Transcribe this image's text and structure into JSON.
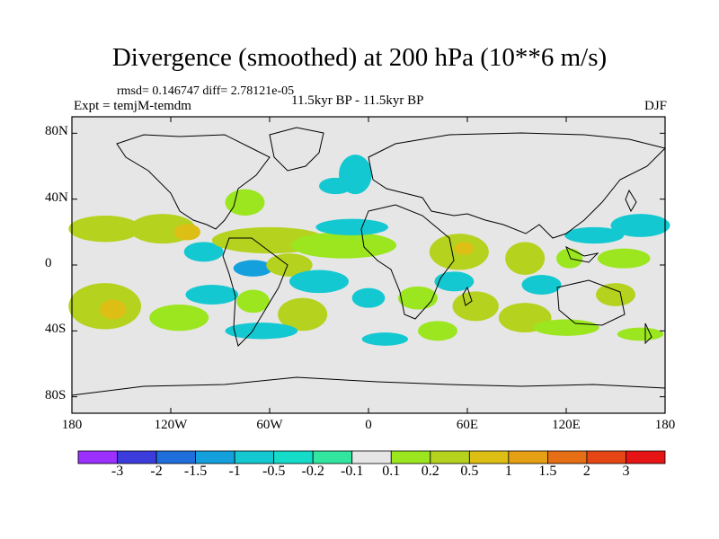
{
  "title": "Divergence (smoothed) at 200 hPa (10**6 m/s)",
  "stats": "rmsd= 0.146747  diff= 2.78121e-05",
  "experiment": "Expt = temjM-temdm",
  "period": "11.5kyr BP - 11.5kyr BP",
  "season": "DJF",
  "axes": {
    "y_ticks": [
      {
        "label": "80N",
        "lat": 80
      },
      {
        "label": "40N",
        "lat": 40
      },
      {
        "label": "0",
        "lat": 0
      },
      {
        "label": "40S",
        "lat": -40
      },
      {
        "label": "80S",
        "lat": -80
      }
    ],
    "x_ticks": [
      {
        "label": "180",
        "lon": -180
      },
      {
        "label": "120W",
        "lon": -120
      },
      {
        "label": "60W",
        "lon": -60
      },
      {
        "label": "0",
        "lon": 0
      },
      {
        "label": "60E",
        "lon": 60
      },
      {
        "label": "120E",
        "lon": 120
      },
      {
        "label": "180",
        "lon": 180
      }
    ]
  },
  "colorbar": {
    "labels": [
      "-3",
      "-2",
      "-1.5",
      "-1",
      "-0.5",
      "-0.2",
      "-0.1",
      "0.1",
      "0.2",
      "0.5",
      "1",
      "1.5",
      "2",
      "3"
    ],
    "colors": [
      "#9b30ff",
      "#3c3cdc",
      "#1e6edc",
      "#14a0dc",
      "#14c8d2",
      "#14dcc8",
      "#32e6a0",
      "#e6e6e6",
      "#9be61e",
      "#b4d21e",
      "#dcbe14",
      "#e6a014",
      "#e66e14",
      "#e64614",
      "#e61414"
    ]
  },
  "field_colors": {
    "land_background": "#e6e6e6",
    "pos_weak": "#9be61e",
    "pos_mid": "#b4d21e",
    "pos_strong": "#dcbe14",
    "pos_max": "#e6a014",
    "neg_weak": "#32e6a0",
    "neg_mid": "#14c8d2",
    "neg_strong": "#14a0dc"
  },
  "chart_data": {
    "type": "heatmap",
    "title": "Divergence (smoothed) at 200 hPa (10**6 m/s)",
    "projection": "cylindrical equidistant",
    "xlim": [
      -180,
      180
    ],
    "ylim": [
      -90,
      90
    ],
    "contour_levels": [
      -3,
      -2,
      -1.5,
      -1,
      -0.5,
      -0.2,
      -0.1,
      0.1,
      0.2,
      0.5,
      1,
      1.5,
      2,
      3
    ],
    "blobs": [
      {
        "lon": -160,
        "lat": 22,
        "rlon": 22,
        "rlat": 8,
        "value": 0.5
      },
      {
        "lon": -125,
        "lat": 22,
        "rlon": 20,
        "rlat": 9,
        "value": 0.5
      },
      {
        "lon": -110,
        "lat": 20,
        "rlon": 8,
        "rlat": 5,
        "value": 1.0
      },
      {
        "lon": -100,
        "lat": 8,
        "rlon": 12,
        "rlat": 6,
        "value": -0.2
      },
      {
        "lon": -75,
        "lat": 38,
        "rlon": 12,
        "rlat": 8,
        "value": 0.2
      },
      {
        "lon": -60,
        "lat": 15,
        "rlon": 35,
        "rlat": 8,
        "value": 0.5
      },
      {
        "lon": -70,
        "lat": -2,
        "rlon": 12,
        "rlat": 5,
        "value": -0.5
      },
      {
        "lon": -48,
        "lat": 0,
        "rlon": 14,
        "rlat": 7,
        "value": 0.5
      },
      {
        "lon": -15,
        "lat": 12,
        "rlon": 32,
        "rlat": 8,
        "value": 0.2
      },
      {
        "lon": -10,
        "lat": 23,
        "rlon": 22,
        "rlat": 5,
        "value": -0.2
      },
      {
        "lon": -8,
        "lat": 55,
        "rlon": 10,
        "rlat": 12,
        "value": -0.2
      },
      {
        "lon": -20,
        "lat": 48,
        "rlon": 10,
        "rlat": 5,
        "value": -0.2
      },
      {
        "lon": 55,
        "lat": 8,
        "rlon": 18,
        "rlat": 11,
        "value": 0.5
      },
      {
        "lon": 58,
        "lat": 10,
        "rlon": 6,
        "rlat": 4,
        "value": 1.0
      },
      {
        "lon": 95,
        "lat": 4,
        "rlon": 12,
        "rlat": 10,
        "value": 0.5
      },
      {
        "lon": 122,
        "lat": 4,
        "rlon": 8,
        "rlat": 6,
        "value": 0.2
      },
      {
        "lon": 137,
        "lat": 18,
        "rlon": 18,
        "rlat": 5,
        "value": -0.2
      },
      {
        "lon": 165,
        "lat": 24,
        "rlon": 18,
        "rlat": 7,
        "value": -0.2
      },
      {
        "lon": 155,
        "lat": 4,
        "rlon": 16,
        "rlat": 6,
        "value": 0.2
      },
      {
        "lon": -160,
        "lat": -25,
        "rlon": 22,
        "rlat": 14,
        "value": 0.5
      },
      {
        "lon": -155,
        "lat": -27,
        "rlon": 8,
        "rlat": 6,
        "value": 1.0
      },
      {
        "lon": -115,
        "lat": -32,
        "rlon": 18,
        "rlat": 8,
        "value": 0.2
      },
      {
        "lon": -95,
        "lat": -18,
        "rlon": 16,
        "rlat": 6,
        "value": -0.2
      },
      {
        "lon": -70,
        "lat": -22,
        "rlon": 10,
        "rlat": 7,
        "value": 0.2
      },
      {
        "lon": -40,
        "lat": -30,
        "rlon": 15,
        "rlat": 10,
        "value": 0.5
      },
      {
        "lon": -30,
        "lat": -10,
        "rlon": 18,
        "rlat": 7,
        "value": -0.2
      },
      {
        "lon": -65,
        "lat": -40,
        "rlon": 22,
        "rlat": 5,
        "value": -0.2
      },
      {
        "lon": 0,
        "lat": -20,
        "rlon": 10,
        "rlat": 6,
        "value": -0.2
      },
      {
        "lon": 10,
        "lat": -45,
        "rlon": 14,
        "rlat": 4,
        "value": -0.2
      },
      {
        "lon": 30,
        "lat": -20,
        "rlon": 12,
        "rlat": 7,
        "value": 0.2
      },
      {
        "lon": 52,
        "lat": -10,
        "rlon": 12,
        "rlat": 6,
        "value": -0.2
      },
      {
        "lon": 65,
        "lat": -25,
        "rlon": 14,
        "rlat": 9,
        "value": 0.5
      },
      {
        "lon": 42,
        "lat": -40,
        "rlon": 12,
        "rlat": 6,
        "value": 0.2
      },
      {
        "lon": 95,
        "lat": -32,
        "rlon": 16,
        "rlat": 9,
        "value": 0.5
      },
      {
        "lon": 105,
        "lat": -12,
        "rlon": 12,
        "rlat": 6,
        "value": -0.2
      },
      {
        "lon": 120,
        "lat": -38,
        "rlon": 20,
        "rlat": 5,
        "value": 0.2
      },
      {
        "lon": 150,
        "lat": -18,
        "rlon": 12,
        "rlat": 7,
        "value": 0.5
      },
      {
        "lon": 165,
        "lat": -42,
        "rlon": 14,
        "rlat": 4,
        "value": 0.2
      }
    ]
  }
}
